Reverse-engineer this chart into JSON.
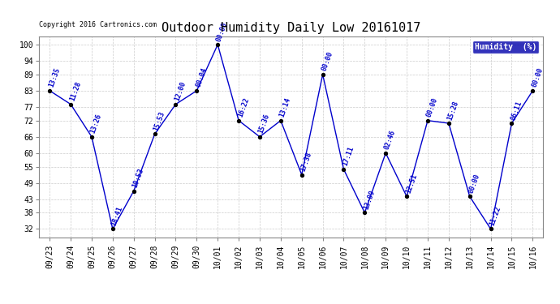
{
  "title": "Outdoor Humidity Daily Low 20161017",
  "copyright": "Copyright 2016 Cartronics.com",
  "legend_label": "Humidity  (%)",
  "background_color": "#ffffff",
  "plot_bg_color": "#ffffff",
  "grid_color": "#cccccc",
  "line_color": "#0000cc",
  "point_color": "#000000",
  "label_color": "#0000cc",
  "xlabels": [
    "09/23",
    "09/24",
    "09/25",
    "09/26",
    "09/27",
    "09/28",
    "09/29",
    "09/30",
    "10/01",
    "10/02",
    "10/03",
    "10/04",
    "10/05",
    "10/06",
    "10/07",
    "10/08",
    "10/09",
    "10/10",
    "10/11",
    "10/12",
    "10/13",
    "10/14",
    "10/15",
    "10/16"
  ],
  "x_indices": [
    0,
    1,
    2,
    3,
    4,
    5,
    6,
    7,
    8,
    9,
    10,
    11,
    12,
    13,
    14,
    15,
    16,
    17,
    18,
    19,
    20,
    21,
    22,
    23
  ],
  "y_values": [
    83,
    78,
    66,
    32,
    46,
    67,
    78,
    83,
    100,
    72,
    66,
    72,
    52,
    89,
    54,
    38,
    60,
    44,
    72,
    71,
    44,
    32,
    71,
    83
  ],
  "time_labels": [
    "13:35",
    "11:28",
    "13:26",
    "18:41",
    "10:53",
    "15:53",
    "12:00",
    "00:04",
    "00:00",
    "16:22",
    "15:36",
    "13:14",
    "17:38",
    "00:00",
    "17:11",
    "13:09",
    "02:46",
    "12:51",
    "00:00",
    "15:28",
    "00:00",
    "11:22",
    "06:11",
    "00:00"
  ],
  "ylim": [
    29,
    103
  ],
  "yticks": [
    32,
    38,
    43,
    49,
    55,
    60,
    66,
    72,
    77,
    83,
    89,
    94,
    100
  ],
  "title_fontsize": 11,
  "label_fontsize": 6,
  "tick_fontsize": 7,
  "copyright_fontsize": 6,
  "legend_bg": "#0000aa",
  "legend_text_color": "#ffffff"
}
